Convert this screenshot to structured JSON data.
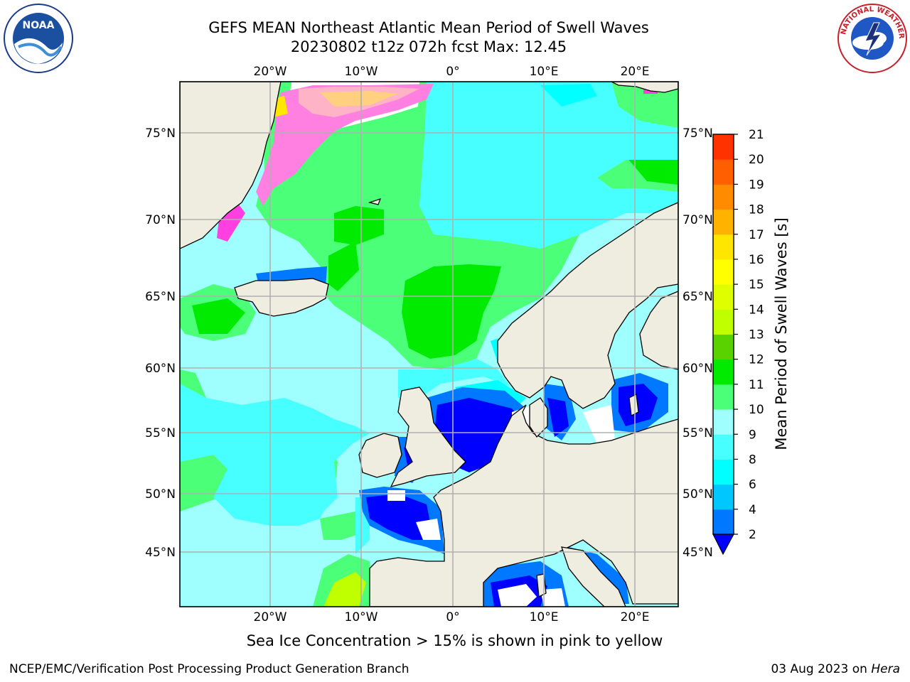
{
  "header": {
    "title": "GEFS MEAN Northeast Atlantic Mean Period of Swell Waves",
    "subtitle": "20230802 t12z 072h fcst   Max: 12.45"
  },
  "logos": {
    "left_text": "NOAA",
    "right_text": "NATIONAL WEATHER SERVICE"
  },
  "map": {
    "lon_labels": [
      "20°W",
      "10°W",
      "0°",
      "10°E",
      "20°E"
    ],
    "lat_labels": [
      "75°N",
      "70°N",
      "65°N",
      "60°N",
      "55°N",
      "50°N",
      "45°N"
    ],
    "land_color": "#efeddf",
    "ocean_base_color": "#9fffff"
  },
  "colorbar": {
    "label": "Mean Period of Swell Waves [s]",
    "ticks": [
      "2",
      "4",
      "6",
      "8",
      "9",
      "10",
      "11",
      "12",
      "13",
      "14",
      "15",
      "16",
      "17",
      "18",
      "19",
      "20",
      "21"
    ],
    "colors": [
      "#0078ff",
      "#00c8ff",
      "#00ffff",
      "#48ffff",
      "#9fffff",
      "#4bff78",
      "#00eb00",
      "#5ad200",
      "#bfff00",
      "#dfff00",
      "#ffff00",
      "#ffe600",
      "#ffb300",
      "#ff8c00",
      "#ff5f00",
      "#ff3200",
      "#ff0000"
    ],
    "under_color": "#0000ff"
  },
  "caption": "Sea Ice Concentration > 15% is shown in pink to yellow",
  "footer": {
    "left": "NCEP/EMC/Verification Post Processing Product Generation Branch",
    "date": "03 Aug 2023 on ",
    "machine": "Hera"
  }
}
